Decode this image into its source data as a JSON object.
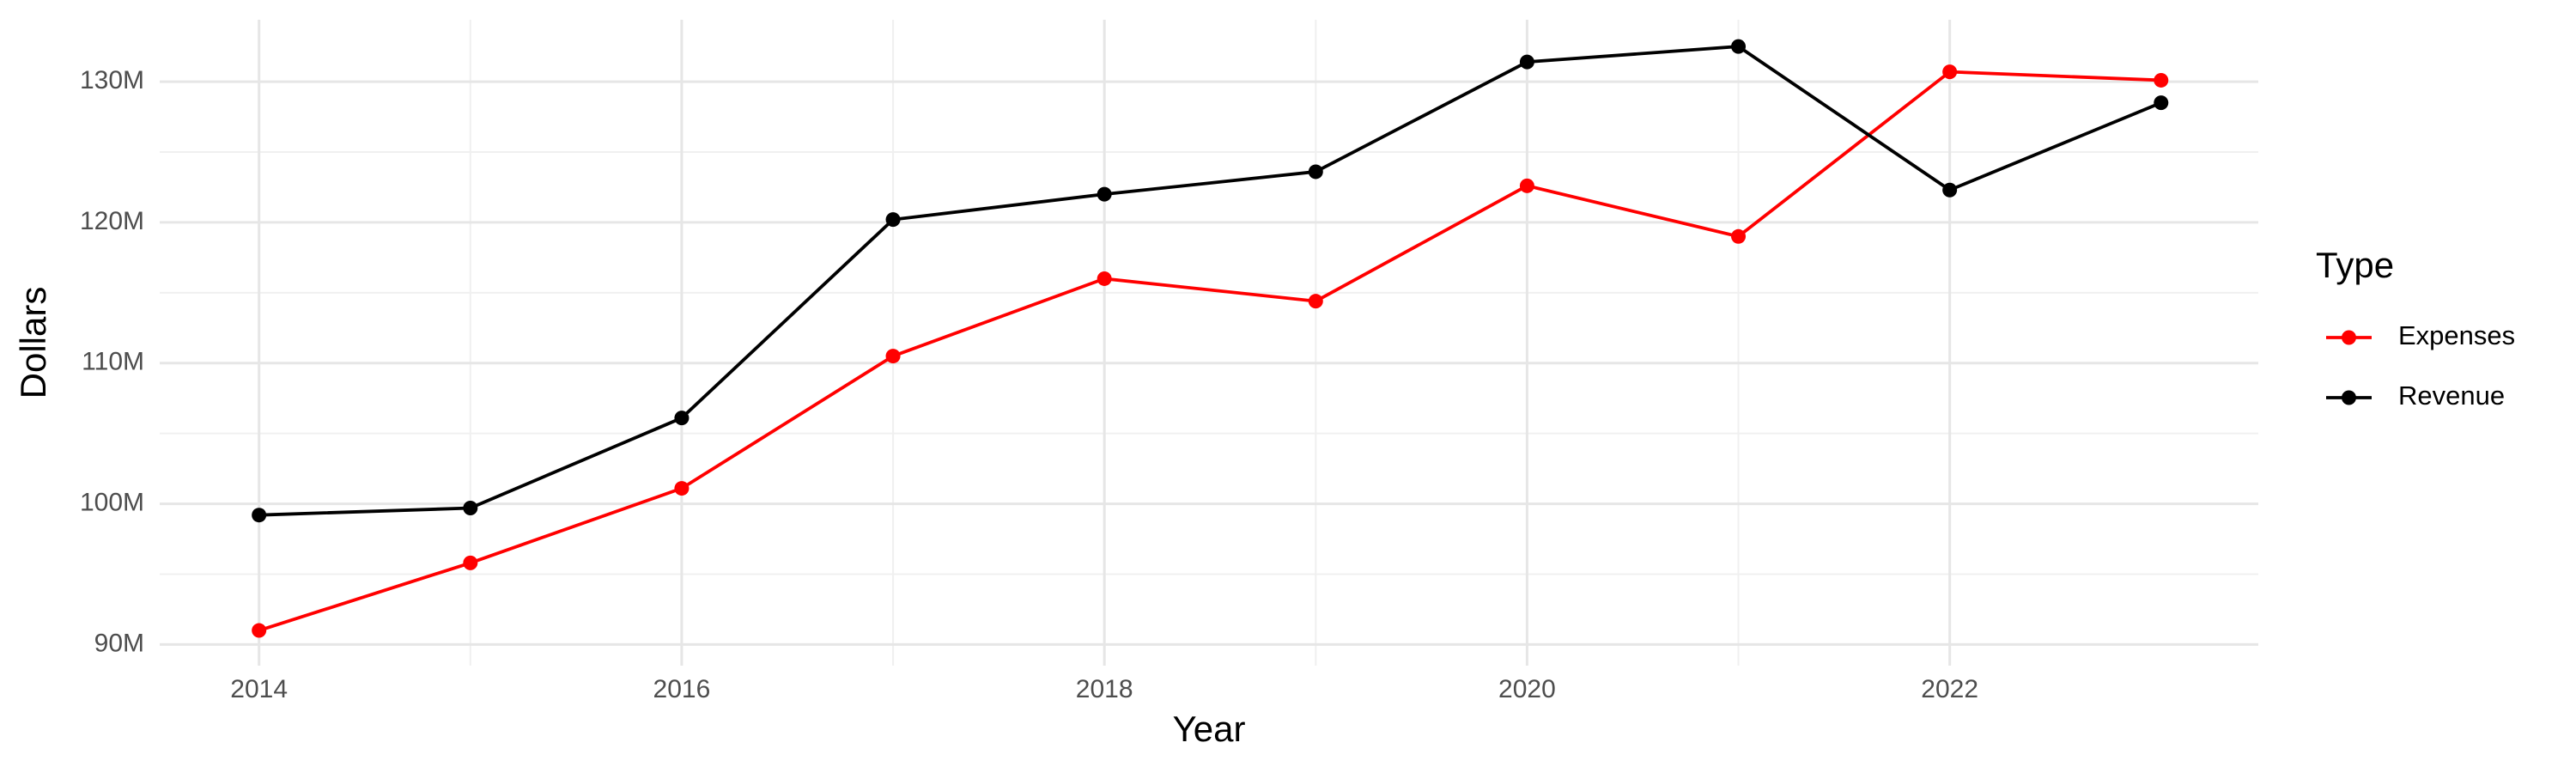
{
  "chart_data": {
    "type": "line",
    "x_label": "Year",
    "y_label": "Dollars",
    "legend_title": "Type",
    "x": [
      2014,
      2015,
      2016,
      2017,
      2018,
      2019,
      2020,
      2021,
      2022,
      2023
    ],
    "series": [
      {
        "name": "Expenses",
        "color": "#ff0000",
        "values": [
          91000000,
          95800000,
          101100000,
          110500000,
          116000000,
          114400000,
          122600000,
          119000000,
          130700000,
          130100000
        ]
      },
      {
        "name": "Revenue",
        "color": "#000000",
        "values": [
          99200000,
          99700000,
          106100000,
          120200000,
          122000000,
          123600000,
          131400000,
          132500000,
          122300000,
          128500000
        ]
      }
    ],
    "xlim": [
      2013.53,
      2023.46
    ],
    "xticks": [
      2014,
      2016,
      2018,
      2020,
      2022
    ],
    "ylim": [
      88500000,
      134400000
    ],
    "yticks": [
      {
        "value": 90000000,
        "label": "90M"
      },
      {
        "value": 100000000,
        "label": "100M"
      },
      {
        "value": 110000000,
        "label": "110M"
      },
      {
        "value": 120000000,
        "label": "120M"
      },
      {
        "value": 130000000,
        "label": "130M"
      }
    ],
    "grid": true,
    "legend_position": "right"
  }
}
